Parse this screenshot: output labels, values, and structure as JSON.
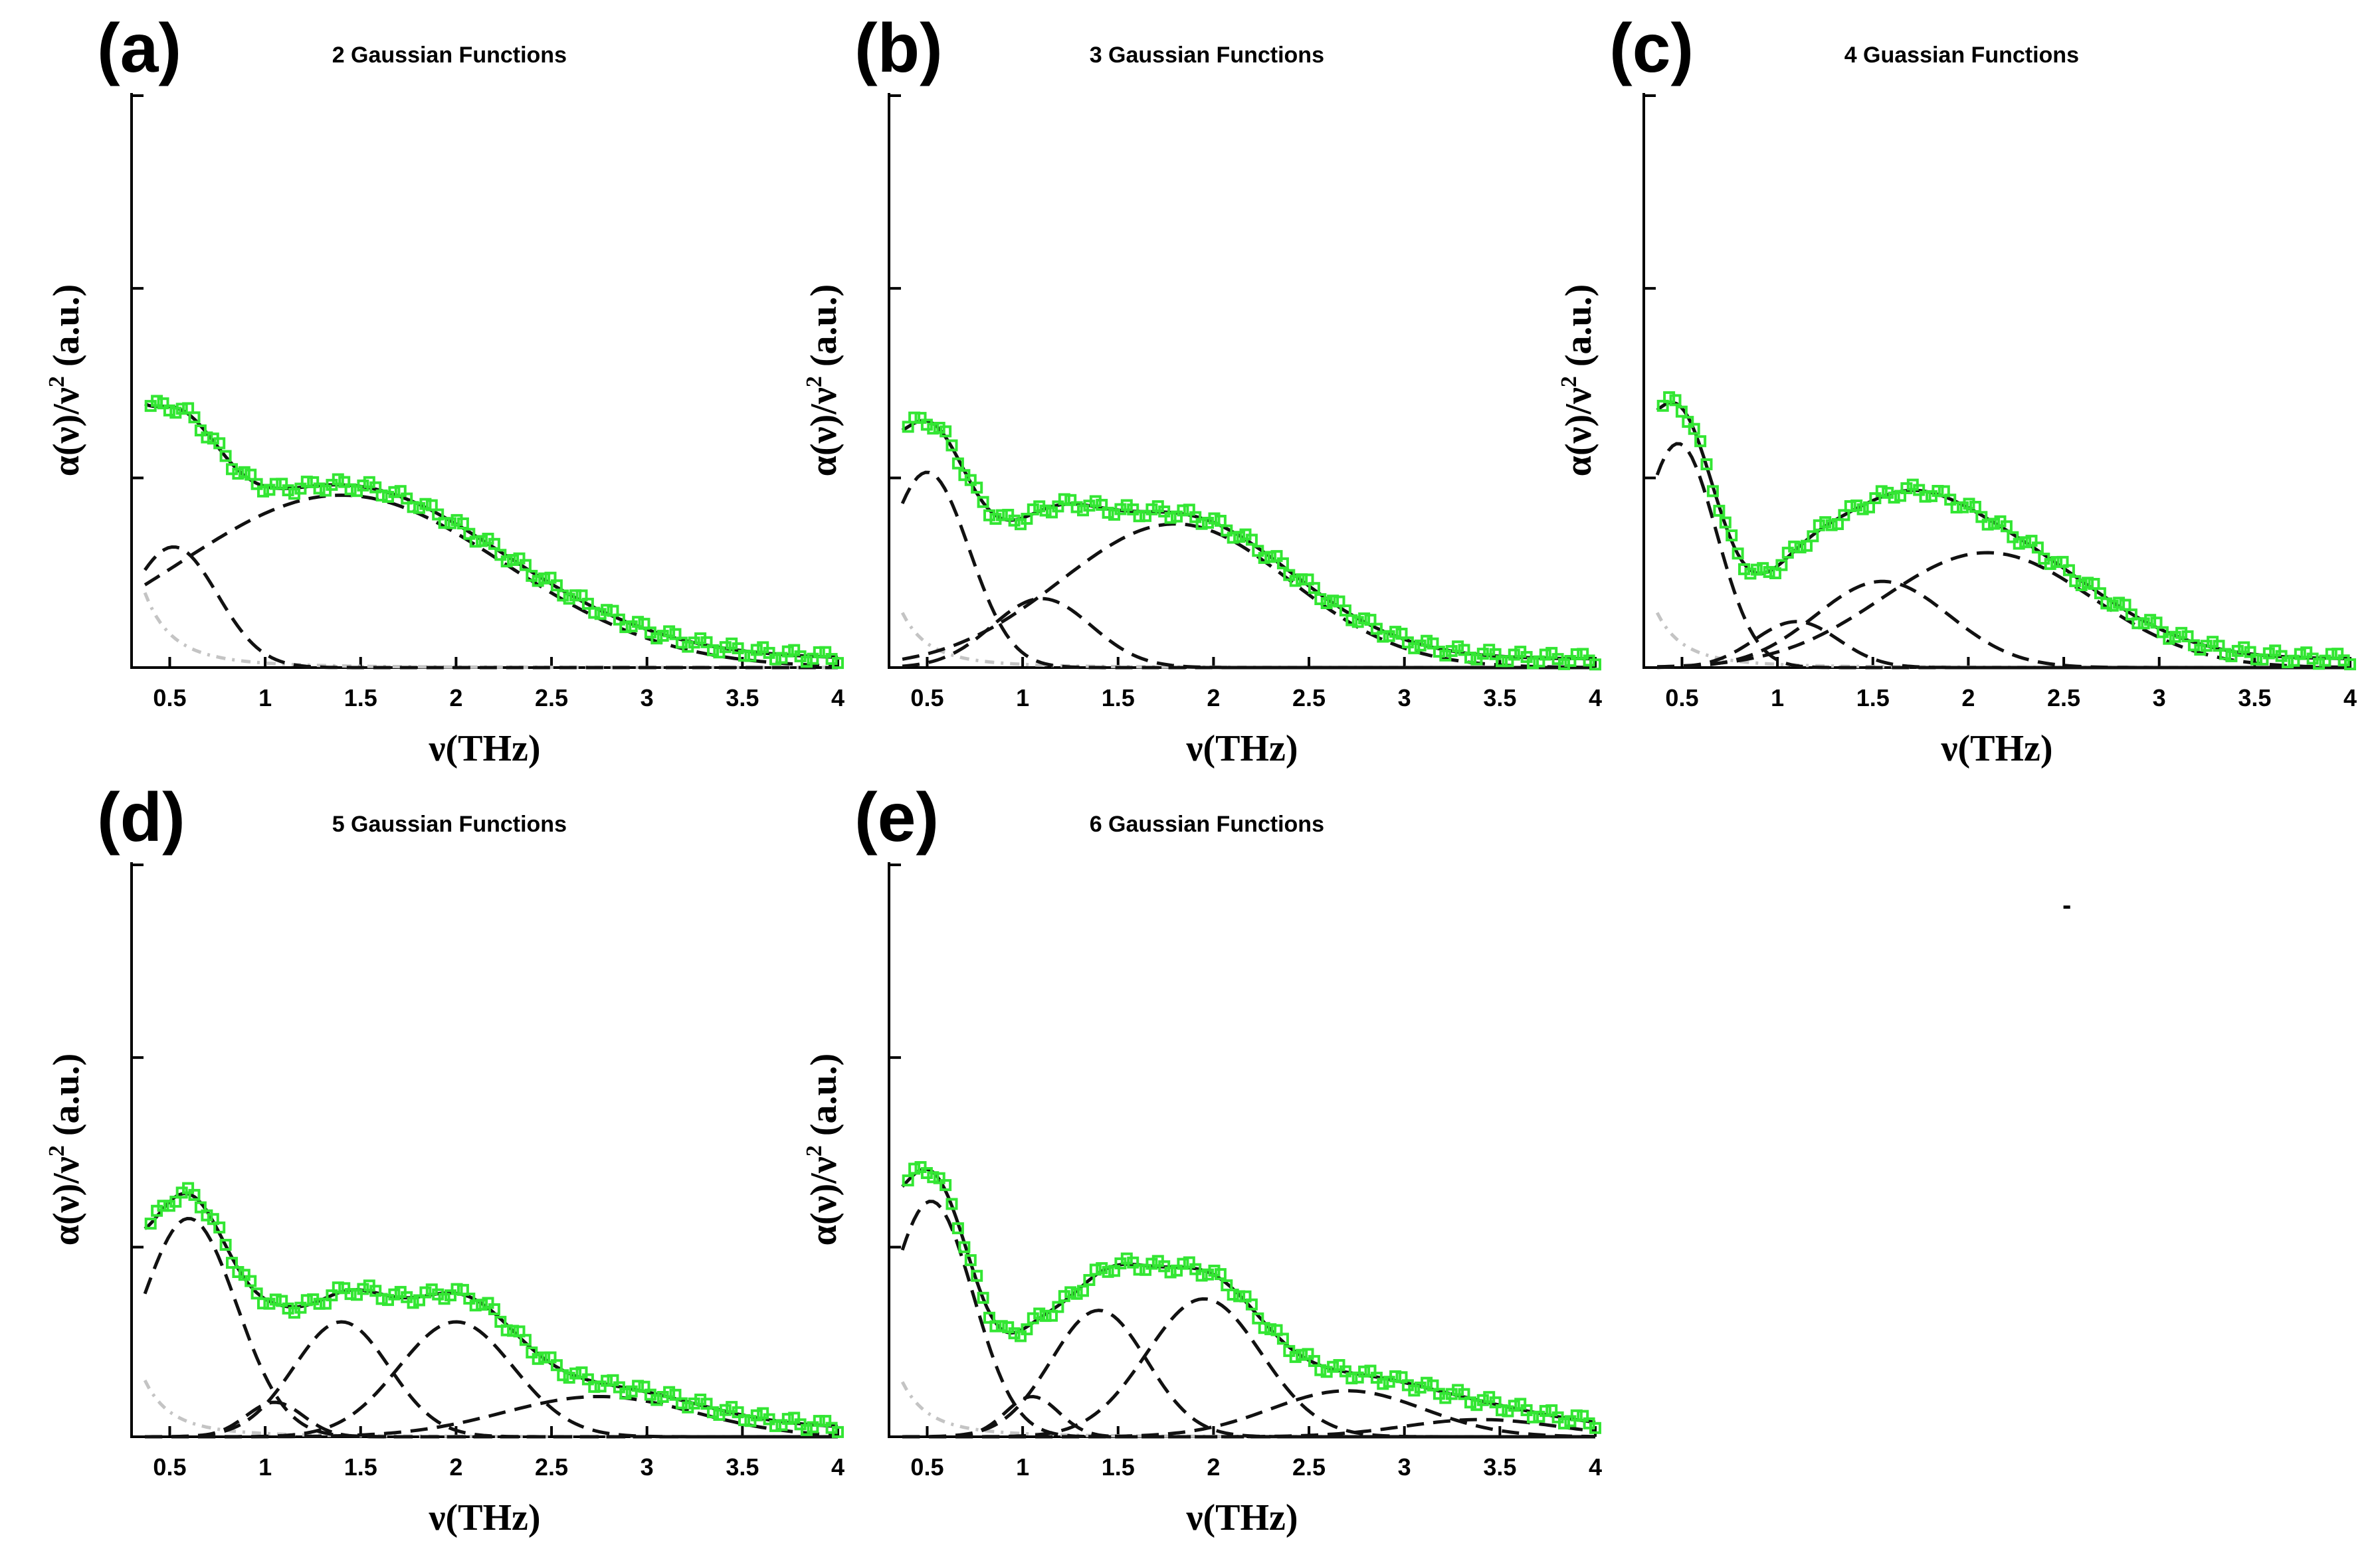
{
  "colors": {
    "data_markers": "#33e633",
    "fit_line": "#111111",
    "gaussian_dashed": "#111111",
    "debye_dotted": "#c4c4c4"
  },
  "stray_mark": "-",
  "chart_data": [
    {
      "panel": "(a)",
      "title": "2 Gaussian Functions",
      "type": "line",
      "xlabel": "ν(THz)",
      "ylabel": "α(ν)/ν",
      "ylabel_sup": "2",
      "ylabel_unit": "(a.u.)",
      "xlim": [
        0.3,
        4.0
      ],
      "ylim": [
        0,
        1.0
      ],
      "xticks": [
        "0.5",
        "1",
        "1.5",
        "2",
        "2.5",
        "3",
        "3.5",
        "4"
      ],
      "debye": {
        "A": 0.75,
        "tau": 0.22
      },
      "gaussians": [
        {
          "center": 0.52,
          "width": 0.23,
          "amp": 0.21
        },
        {
          "center": 1.4,
          "width": 0.85,
          "amp": 0.3
        }
      ]
    },
    {
      "panel": "(b)",
      "title": "3 Gaussian Functions",
      "type": "line",
      "xlabel": "ν(THz)",
      "ylabel": "α(ν)/ν",
      "ylabel_sup": "2",
      "ylabel_unit": "(a.u.)",
      "xlim": [
        0.3,
        4.0
      ],
      "ylim": [
        0,
        1.0
      ],
      "xticks": [
        "0.5",
        "1",
        "1.5",
        "2",
        "2.5",
        "3",
        "3.5",
        "4"
      ],
      "debye": {
        "A": 0.7,
        "tau": 0.2
      },
      "gaussians": [
        {
          "center": 0.5,
          "width": 0.22,
          "amp": 0.34
        },
        {
          "center": 1.1,
          "width": 0.26,
          "amp": 0.12
        },
        {
          "center": 1.8,
          "width": 0.6,
          "amp": 0.25
        }
      ]
    },
    {
      "panel": "(c)",
      "title": "4 Guassian Functions",
      "type": "line",
      "xlabel": "ν(THz)",
      "ylabel": "α(ν)/ν",
      "ylabel_sup": "2",
      "ylabel_unit": "(a.u.)",
      "xlim": [
        0.3,
        4.0
      ],
      "ylim": [
        0,
        1.0
      ],
      "xticks": [
        "0.5",
        "1",
        "1.5",
        "2",
        "2.5",
        "3",
        "3.5",
        "4"
      ],
      "debye": {
        "A": 0.7,
        "tau": 0.2
      },
      "gaussians": [
        {
          "center": 0.48,
          "width": 0.2,
          "amp": 0.39
        },
        {
          "center": 1.1,
          "width": 0.22,
          "amp": 0.08
        },
        {
          "center": 1.55,
          "width": 0.35,
          "amp": 0.15
        },
        {
          "center": 2.1,
          "width": 0.55,
          "amp": 0.2
        }
      ]
    },
    {
      "panel": "(d)",
      "title": "5 Gaussian Functions",
      "type": "line",
      "xlabel": "ν(THz)",
      "ylabel": "α(ν)/ν",
      "ylabel_sup": "2",
      "ylabel_unit": "(a.u.)",
      "xlim": [
        0.3,
        4.0
      ],
      "ylim": [
        0,
        1.0
      ],
      "xticks": [
        "0.5",
        "1",
        "1.5",
        "2",
        "2.5",
        "3",
        "3.5",
        "4"
      ],
      "debye": {
        "A": 0.72,
        "tau": 0.2
      },
      "gaussians": [
        {
          "center": 0.6,
          "width": 0.25,
          "amp": 0.38
        },
        {
          "center": 1.05,
          "width": 0.15,
          "amp": 0.06
        },
        {
          "center": 1.4,
          "width": 0.25,
          "amp": 0.2
        },
        {
          "center": 2.0,
          "width": 0.3,
          "amp": 0.2
        },
        {
          "center": 2.75,
          "width": 0.5,
          "amp": 0.07
        }
      ]
    },
    {
      "panel": "(e)",
      "title": "6 Gaussian Functions",
      "type": "line",
      "xlabel": "ν(THz)",
      "ylabel": "α(ν)/ν",
      "ylabel_sup": "2",
      "ylabel_unit": "(a.u.)",
      "xlim": [
        0.3,
        4.0
      ],
      "ylim": [
        0,
        1.0
      ],
      "xticks": [
        "0.5",
        "1",
        "1.5",
        "2",
        "2.5",
        "3",
        "3.5",
        "4"
      ],
      "debye": {
        "A": 0.7,
        "tau": 0.2
      },
      "gaussians": [
        {
          "center": 0.52,
          "width": 0.22,
          "amp": 0.41
        },
        {
          "center": 1.05,
          "width": 0.14,
          "amp": 0.07
        },
        {
          "center": 1.4,
          "width": 0.25,
          "amp": 0.22
        },
        {
          "center": 1.95,
          "width": 0.3,
          "amp": 0.24
        },
        {
          "center": 2.7,
          "width": 0.4,
          "amp": 0.08
        },
        {
          "center": 3.4,
          "width": 0.4,
          "amp": 0.03
        }
      ]
    }
  ]
}
